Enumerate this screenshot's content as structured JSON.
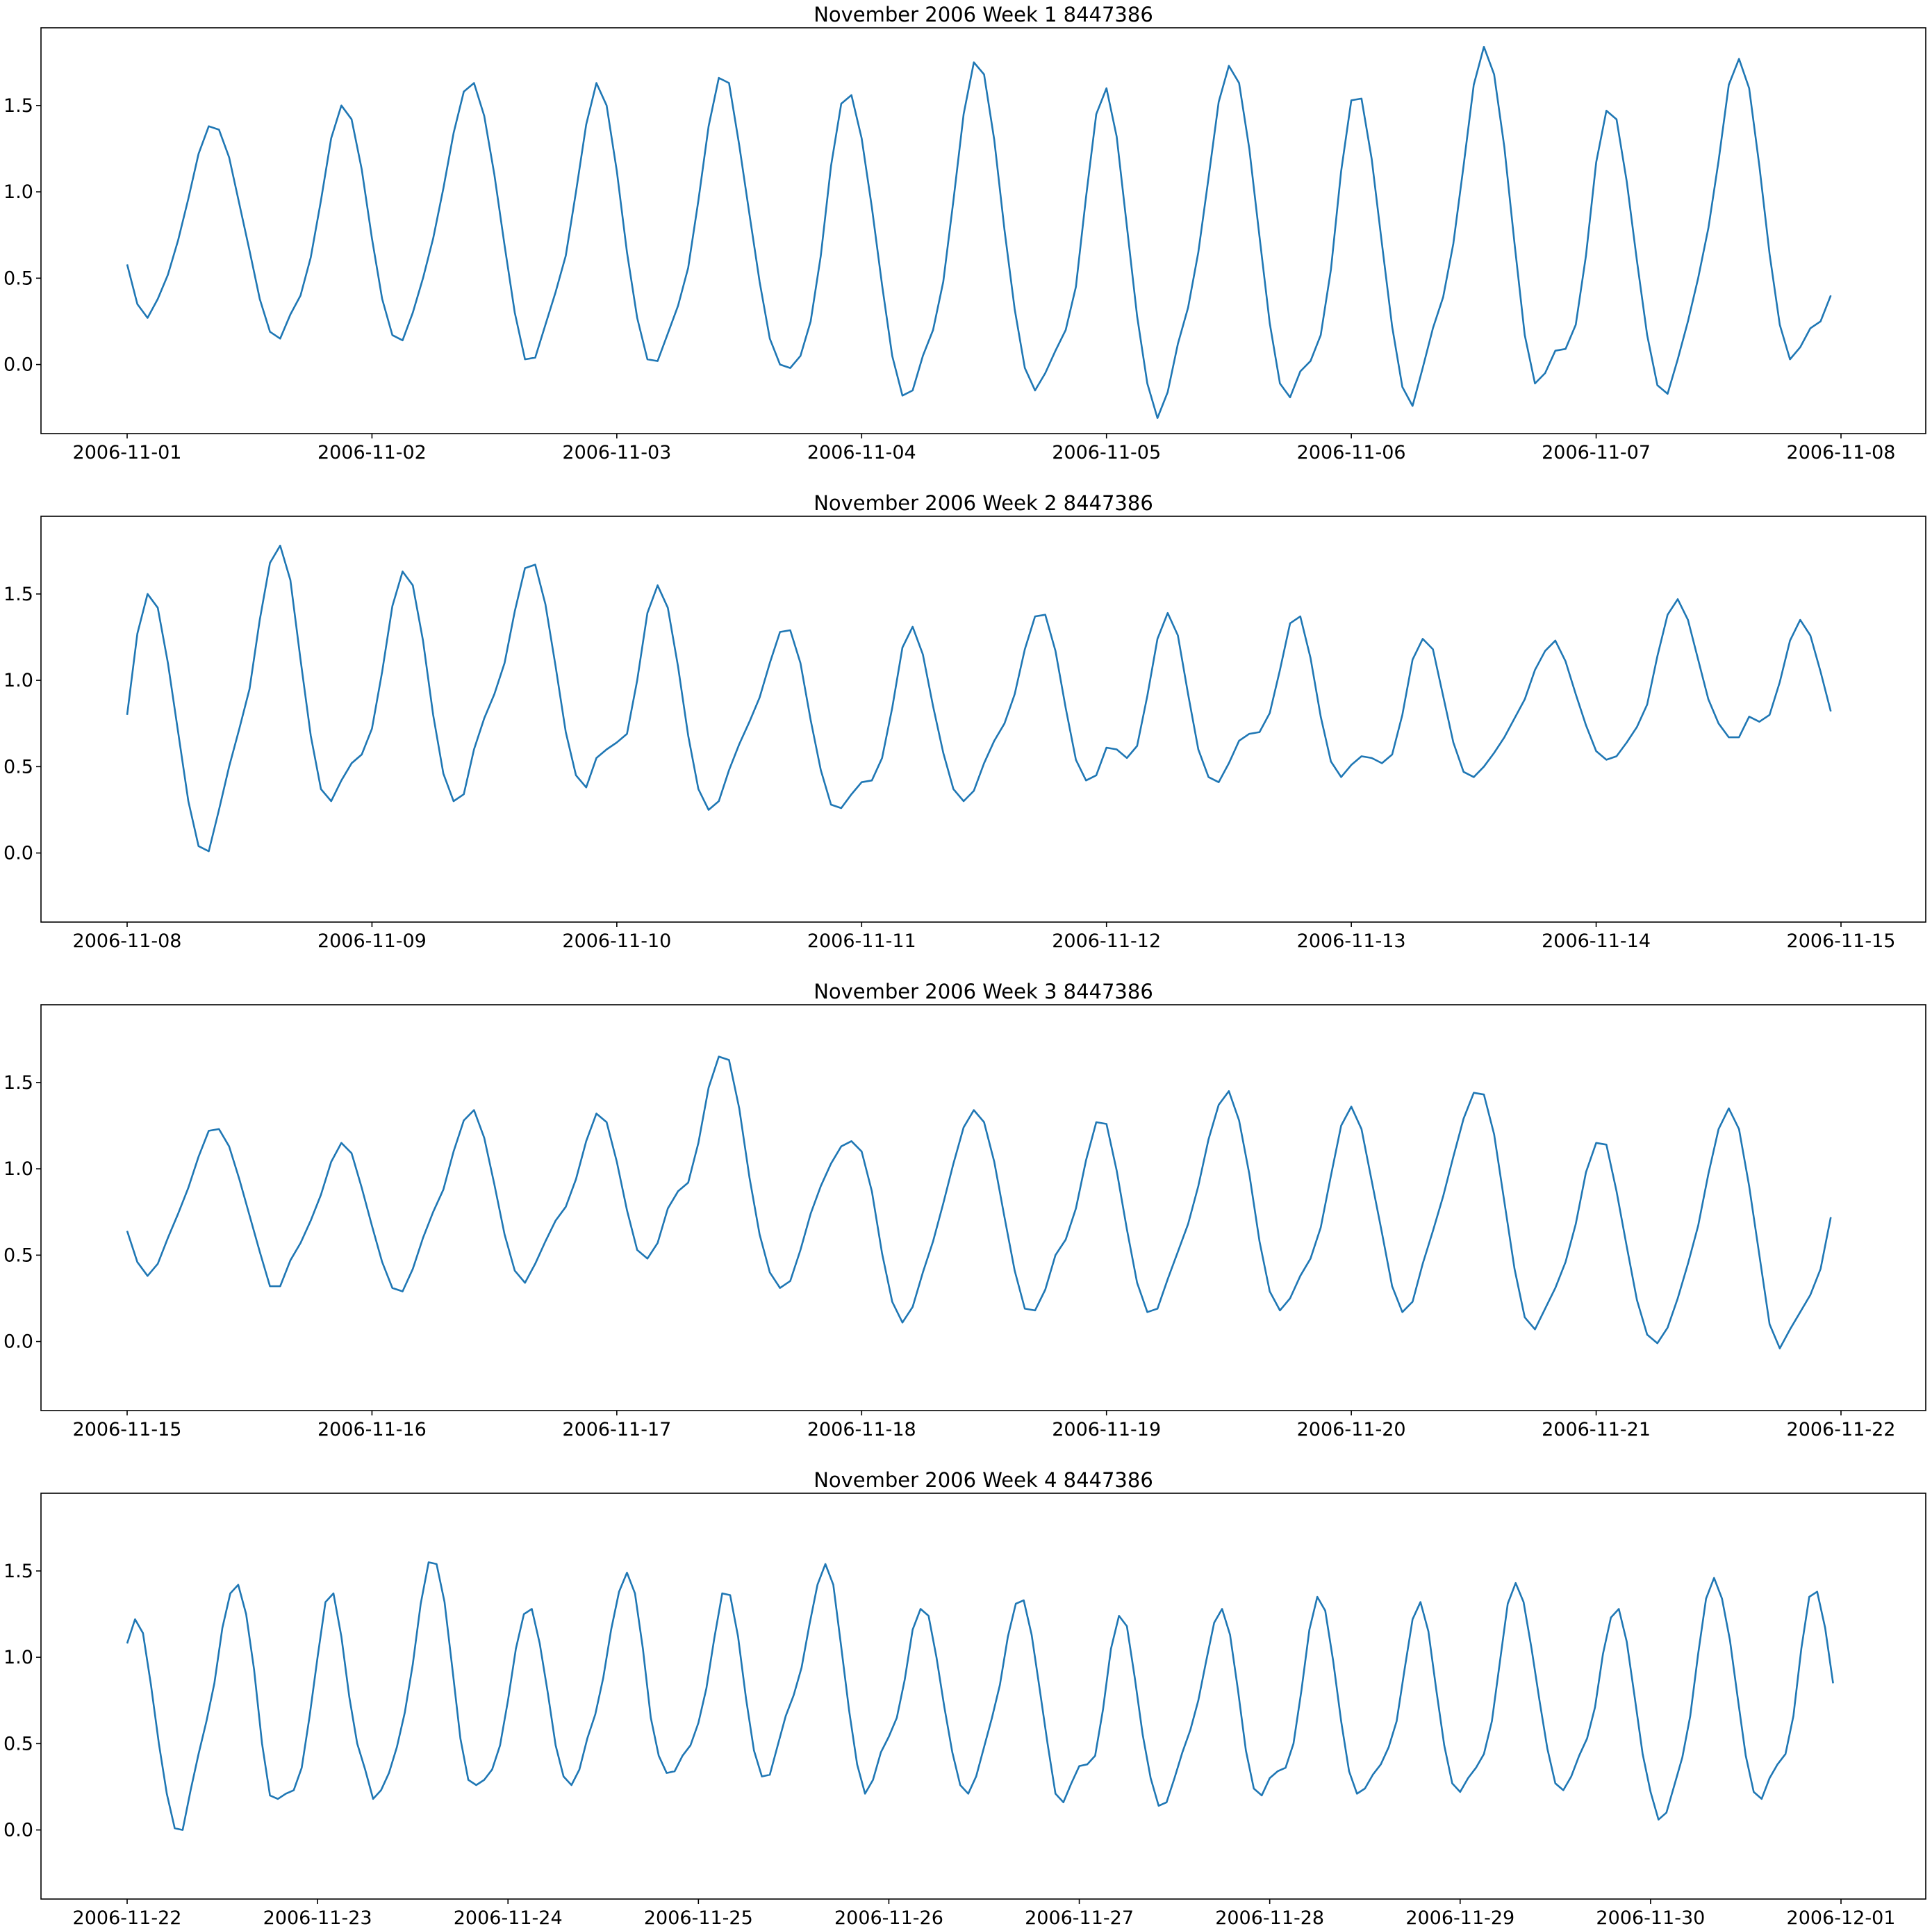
{
  "colors": {
    "series": "#1f77b4",
    "axes": "#000000",
    "background": "#ffffff"
  },
  "chart_data": [
    {
      "type": "line",
      "title": "November 2006 Week 1 8447386",
      "xlabel": "",
      "ylabel": "",
      "xlim": [
        "2006-11-01",
        "2006-11-08"
      ],
      "ylim": [
        -0.4,
        1.95
      ],
      "x_start": "2006-11-01 00:00",
      "x_step_hours": 1,
      "xticks": [
        "2006-11-01",
        "2006-11-02",
        "2006-11-03",
        "2006-11-04",
        "2006-11-05",
        "2006-11-06",
        "2006-11-07",
        "2006-11-08"
      ],
      "yticks": [
        "0.0",
        "0.5",
        "1.0",
        "1.5"
      ],
      "grid": false,
      "series": [
        {
          "values": [
            0.58,
            0.35,
            0.27,
            0.38,
            0.52,
            0.72,
            0.96,
            1.22,
            1.38,
            1.36,
            1.2,
            0.93,
            0.66,
            0.38,
            0.19,
            0.15,
            0.29,
            0.4,
            0.62,
            0.95,
            1.31,
            1.5,
            1.42,
            1.13,
            0.73,
            0.38,
            0.17,
            0.14,
            0.3,
            0.5,
            0.73,
            1.02,
            1.34,
            1.58,
            1.63,
            1.44,
            1.1,
            0.69,
            0.3,
            0.03,
            0.04,
            0.23,
            0.42,
            0.63,
            1.0,
            1.39,
            1.63,
            1.5,
            1.12,
            0.65,
            0.27,
            0.03,
            0.02,
            0.18,
            0.34,
            0.56,
            0.95,
            1.38,
            1.66,
            1.63,
            1.27,
            0.87,
            0.48,
            0.15,
            0.0,
            -0.02,
            0.05,
            0.25,
            0.63,
            1.15,
            1.51,
            1.56,
            1.31,
            0.91,
            0.46,
            0.05,
            -0.18,
            -0.15,
            0.05,
            0.2,
            0.48,
            0.95,
            1.45,
            1.75,
            1.68,
            1.3,
            0.78,
            0.32,
            -0.02,
            -0.15,
            -0.05,
            0.08,
            0.2,
            0.45,
            0.97,
            1.45,
            1.6,
            1.32,
            0.8,
            0.28,
            -0.11,
            -0.31,
            -0.16,
            0.12,
            0.33,
            0.65,
            1.08,
            1.52,
            1.73,
            1.63,
            1.25,
            0.74,
            0.24,
            -0.11,
            -0.19,
            -0.04,
            0.02,
            0.17,
            0.55,
            1.12,
            1.53,
            1.54,
            1.19,
            0.7,
            0.22,
            -0.13,
            -0.24,
            -0.02,
            0.21,
            0.39,
            0.7,
            1.15,
            1.62,
            1.84,
            1.68,
            1.26,
            0.7,
            0.17,
            -0.11,
            -0.05,
            0.08,
            0.09,
            0.23,
            0.63,
            1.17,
            1.47,
            1.42,
            1.06,
            0.6,
            0.17,
            -0.12,
            -0.17,
            0.03,
            0.25,
            0.5,
            0.79,
            1.18,
            1.62,
            1.77,
            1.6,
            1.15,
            0.64,
            0.23,
            0.03,
            0.1,
            0.21,
            0.25,
            0.4
          ]
        }
      ]
    },
    {
      "type": "line",
      "title": "November 2006 Week 2 8447386",
      "xlabel": "",
      "ylabel": "",
      "xlim": [
        "2006-11-08",
        "2006-11-15"
      ],
      "ylim": [
        -0.4,
        1.95
      ],
      "x_start": "2006-11-08 00:00",
      "x_step_hours": 1,
      "xticks": [
        "2006-11-08",
        "2006-11-09",
        "2006-11-10",
        "2006-11-11",
        "2006-11-12",
        "2006-11-13",
        "2006-11-14",
        "2006-11-15"
      ],
      "yticks": [
        "0.0",
        "0.5",
        "1.0",
        "1.5"
      ],
      "grid": false,
      "series": [
        {
          "values": [
            0.8,
            1.27,
            1.5,
            1.42,
            1.1,
            0.7,
            0.3,
            0.04,
            0.01,
            0.25,
            0.5,
            0.72,
            0.95,
            1.35,
            1.68,
            1.78,
            1.58,
            1.12,
            0.68,
            0.37,
            0.3,
            0.42,
            0.52,
            0.57,
            0.72,
            1.05,
            1.43,
            1.63,
            1.55,
            1.23,
            0.8,
            0.46,
            0.3,
            0.34,
            0.6,
            0.78,
            0.92,
            1.1,
            1.4,
            1.65,
            1.67,
            1.44,
            1.08,
            0.7,
            0.45,
            0.38,
            0.55,
            0.6,
            0.64,
            0.69,
            1.0,
            1.39,
            1.55,
            1.42,
            1.08,
            0.68,
            0.37,
            0.25,
            0.3,
            0.48,
            0.63,
            0.76,
            0.9,
            1.1,
            1.28,
            1.29,
            1.1,
            0.77,
            0.48,
            0.28,
            0.26,
            0.34,
            0.41,
            0.42,
            0.55,
            0.84,
            1.19,
            1.31,
            1.15,
            0.85,
            0.58,
            0.37,
            0.3,
            0.36,
            0.52,
            0.65,
            0.75,
            0.92,
            1.18,
            1.37,
            1.38,
            1.17,
            0.84,
            0.54,
            0.42,
            0.45,
            0.61,
            0.6,
            0.55,
            0.62,
            0.91,
            1.24,
            1.39,
            1.26,
            0.92,
            0.6,
            0.44,
            0.41,
            0.52,
            0.65,
            0.69,
            0.7,
            0.81,
            1.06,
            1.33,
            1.37,
            1.13,
            0.79,
            0.53,
            0.44,
            0.51,
            0.56,
            0.55,
            0.52,
            0.57,
            0.8,
            1.12,
            1.24,
            1.18,
            0.91,
            0.64,
            0.47,
            0.44,
            0.5,
            0.58,
            0.67,
            0.78,
            0.89,
            1.06,
            1.17,
            1.23,
            1.11,
            0.92,
            0.74,
            0.59,
            0.54,
            0.56,
            0.64,
            0.73,
            0.86,
            1.14,
            1.38,
            1.47,
            1.35,
            1.12,
            0.89,
            0.75,
            0.67,
            0.67,
            0.79,
            0.76,
            0.8,
            0.99,
            1.23,
            1.35,
            1.26,
            1.05,
            0.82
          ]
        }
      ]
    },
    {
      "type": "line",
      "title": "November 2006 Week 3 8447386",
      "xlabel": "",
      "ylabel": "",
      "xlim": [
        "2006-11-15",
        "2006-11-22"
      ],
      "ylim": [
        -0.4,
        1.95
      ],
      "x_start": "2006-11-15 00:00",
      "x_step_hours": 1,
      "xticks": [
        "2006-11-15",
        "2006-11-16",
        "2006-11-17",
        "2006-11-18",
        "2006-11-19",
        "2006-11-20",
        "2006-11-21",
        "2006-11-22"
      ],
      "yticks": [
        "0.0",
        "0.5",
        "1.0",
        "1.5"
      ],
      "grid": false,
      "series": [
        {
          "values": [
            0.64,
            0.46,
            0.38,
            0.45,
            0.6,
            0.74,
            0.89,
            1.07,
            1.22,
            1.23,
            1.13,
            0.94,
            0.73,
            0.52,
            0.32,
            0.32,
            0.47,
            0.57,
            0.7,
            0.85,
            1.04,
            1.15,
            1.09,
            0.89,
            0.67,
            0.46,
            0.31,
            0.29,
            0.42,
            0.6,
            0.75,
            0.88,
            1.1,
            1.28,
            1.34,
            1.18,
            0.91,
            0.62,
            0.41,
            0.34,
            0.45,
            0.58,
            0.7,
            0.78,
            0.94,
            1.16,
            1.32,
            1.27,
            1.04,
            0.76,
            0.53,
            0.48,
            0.57,
            0.77,
            0.87,
            0.92,
            1.15,
            1.47,
            1.65,
            1.63,
            1.35,
            0.95,
            0.62,
            0.4,
            0.31,
            0.35,
            0.53,
            0.74,
            0.9,
            1.03,
            1.13,
            1.16,
            1.1,
            0.87,
            0.51,
            0.23,
            0.11,
            0.2,
            0.4,
            0.58,
            0.8,
            1.03,
            1.24,
            1.34,
            1.27,
            1.04,
            0.72,
            0.41,
            0.19,
            0.18,
            0.3,
            0.5,
            0.59,
            0.77,
            1.05,
            1.27,
            1.26,
            0.99,
            0.65,
            0.34,
            0.17,
            0.19,
            0.36,
            0.52,
            0.68,
            0.9,
            1.17,
            1.37,
            1.45,
            1.28,
            0.97,
            0.58,
            0.29,
            0.18,
            0.25,
            0.38,
            0.48,
            0.66,
            0.96,
            1.25,
            1.36,
            1.23,
            0.93,
            0.63,
            0.32,
            0.17,
            0.23,
            0.45,
            0.64,
            0.84,
            1.07,
            1.29,
            1.44,
            1.43,
            1.2,
            0.81,
            0.42,
            0.14,
            0.07,
            0.19,
            0.31,
            0.46,
            0.68,
            0.98,
            1.15,
            1.14,
            0.87,
            0.55,
            0.24,
            0.04,
            -0.01,
            0.08,
            0.25,
            0.45,
            0.67,
            0.97,
            1.23,
            1.35,
            1.23,
            0.9,
            0.5,
            0.1,
            -0.04,
            0.07,
            0.17,
            0.27,
            0.42,
            0.72
          ]
        }
      ]
    },
    {
      "type": "line",
      "title": "November 2006 Week 4 8447386",
      "xlabel": "",
      "ylabel": "",
      "xlim": [
        "2006-11-22",
        "2006-12-01"
      ],
      "ylim": [
        -0.4,
        1.95
      ],
      "x_start": "2006-11-22 00:00",
      "x_step_hours": 1,
      "xticks": [
        "2006-11-22",
        "2006-11-23",
        "2006-11-24",
        "2006-11-25",
        "2006-11-26",
        "2006-11-27",
        "2006-11-28",
        "2006-11-29",
        "2006-11-30",
        "2006-12-01"
      ],
      "yticks": [
        "0.0",
        "0.5",
        "1.0",
        "1.5"
      ],
      "grid": false,
      "series": [
        {
          "values": [
            1.08,
            1.22,
            1.14,
            0.84,
            0.5,
            0.21,
            0.01,
            0.0,
            0.23,
            0.44,
            0.63,
            0.85,
            1.17,
            1.37,
            1.42,
            1.25,
            0.93,
            0.5,
            0.2,
            0.18,
            0.21,
            0.23,
            0.36,
            0.66,
            1.0,
            1.32,
            1.37,
            1.12,
            0.77,
            0.5,
            0.35,
            0.18,
            0.23,
            0.33,
            0.48,
            0.68,
            0.96,
            1.31,
            1.55,
            1.54,
            1.32,
            0.93,
            0.53,
            0.29,
            0.26,
            0.29,
            0.35,
            0.49,
            0.75,
            1.05,
            1.25,
            1.28,
            1.08,
            0.8,
            0.49,
            0.31,
            0.26,
            0.35,
            0.53,
            0.67,
            0.88,
            1.16,
            1.38,
            1.49,
            1.37,
            1.05,
            0.65,
            0.43,
            0.33,
            0.34,
            0.43,
            0.49,
            0.62,
            0.82,
            1.11,
            1.37,
            1.36,
            1.12,
            0.76,
            0.46,
            0.31,
            0.32,
            0.49,
            0.66,
            0.78,
            0.94,
            1.19,
            1.42,
            1.54,
            1.42,
            1.06,
            0.69,
            0.38,
            0.21,
            0.29,
            0.45,
            0.54,
            0.65,
            0.87,
            1.16,
            1.28,
            1.24,
            1.0,
            0.71,
            0.45,
            0.26,
            0.21,
            0.31,
            0.48,
            0.65,
            0.84,
            1.12,
            1.31,
            1.33,
            1.13,
            0.82,
            0.5,
            0.21,
            0.16,
            0.27,
            0.37,
            0.38,
            0.43,
            0.7,
            1.05,
            1.24,
            1.18,
            0.88,
            0.55,
            0.3,
            0.14,
            0.16,
            0.3,
            0.45,
            0.58,
            0.75,
            0.98,
            1.2,
            1.28,
            1.13,
            0.81,
            0.46,
            0.24,
            0.2,
            0.3,
            0.34,
            0.36,
            0.5,
            0.81,
            1.16,
            1.35,
            1.27,
            0.98,
            0.63,
            0.34,
            0.21,
            0.24,
            0.32,
            0.38,
            0.48,
            0.63,
            0.93,
            1.22,
            1.32,
            1.15,
            0.81,
            0.49,
            0.27,
            0.22,
            0.3,
            0.36,
            0.44,
            0.63,
            0.97,
            1.31,
            1.43,
            1.32,
            1.05,
            0.75,
            0.47,
            0.27,
            0.23,
            0.31,
            0.43,
            0.53,
            0.71,
            1.02,
            1.23,
            1.28,
            1.09,
            0.77,
            0.44,
            0.22,
            0.06,
            0.1,
            0.26,
            0.42,
            0.66,
            1.02,
            1.34,
            1.46,
            1.34,
            1.1,
            0.76,
            0.43,
            0.22,
            0.18,
            0.3,
            0.38,
            0.44,
            0.66,
            1.05,
            1.35,
            1.38,
            1.17,
            0.85
          ]
        }
      ]
    }
  ]
}
